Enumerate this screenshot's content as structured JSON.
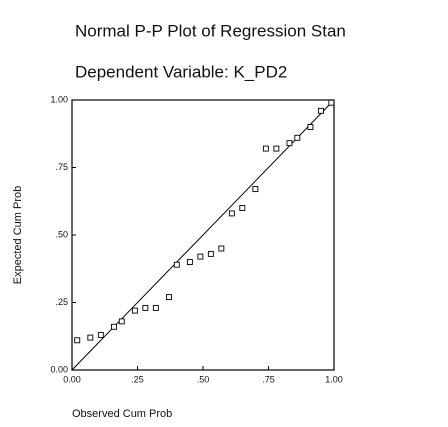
{
  "chart_data": {
    "type": "scatter",
    "title": "Normal P-P Plot of Regression Stan",
    "subtitle": "Dependent Variable: K_PD2",
    "x_label": "Observed Cum Prob",
    "y_label": "Expected Cum Prob",
    "color": "#000000",
    "x": [
      0.02,
      0.07,
      0.11,
      0.16,
      0.19,
      0.24,
      0.28,
      0.32,
      0.37,
      0.4,
      0.45,
      0.49,
      0.53,
      0.57,
      0.61,
      0.65,
      0.7,
      0.74,
      0.78,
      0.83,
      0.86,
      0.91,
      0.95,
      0.99
    ],
    "values": [
      0.11,
      0.12,
      0.13,
      0.16,
      0.18,
      0.22,
      0.23,
      0.23,
      0.27,
      0.39,
      0.4,
      0.42,
      0.43,
      0.45,
      0.58,
      0.6,
      0.67,
      0.82,
      0.82,
      0.84,
      0.86,
      0.9,
      0.96,
      0.99
    ],
    "xlim": [
      0,
      1
    ],
    "ylim": [
      0,
      1
    ],
    "xticks": [
      {
        "value": 0,
        "label": "0.00"
      },
      {
        "value": 0.25,
        "label": ".25"
      },
      {
        "value": 0.5,
        "label": ".50"
      },
      {
        "value": 0.75,
        "label": ".75"
      },
      {
        "value": 1,
        "label": "1.00"
      }
    ],
    "yticks": [
      {
        "value": 0,
        "label": "0.00"
      },
      {
        "value": 0.25,
        "label": ".25"
      },
      {
        "value": 0.5,
        "label": ".50"
      },
      {
        "value": 0.75,
        "label": ".75"
      },
      {
        "value": 1,
        "label": "1.00"
      }
    ],
    "grid": false
  }
}
